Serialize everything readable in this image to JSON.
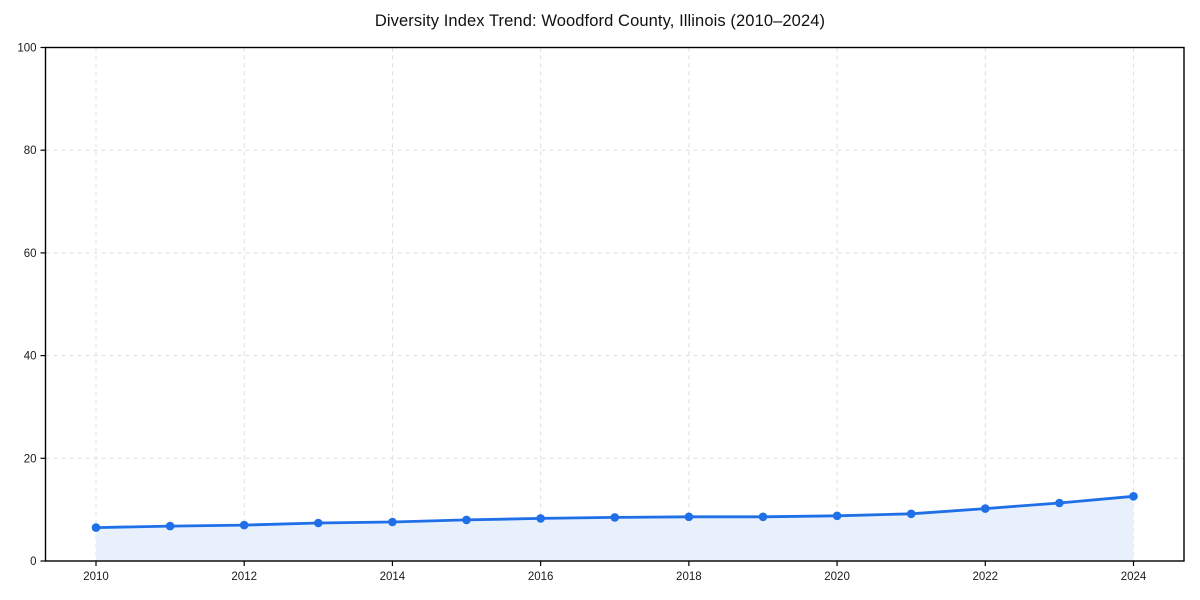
{
  "chart_data": {
    "type": "line",
    "title": "Diversity Index Trend: Woodford County, Illinois (2010–2024)",
    "xlabel": "",
    "ylabel": "",
    "x": [
      2010,
      2011,
      2012,
      2013,
      2014,
      2015,
      2016,
      2017,
      2018,
      2019,
      2020,
      2021,
      2022,
      2023,
      2024
    ],
    "series": [
      {
        "name": "Diversity Index",
        "values": [
          6.5,
          6.8,
          7.0,
          7.4,
          7.6,
          8.0,
          8.3,
          8.5,
          8.6,
          8.6,
          8.8,
          9.2,
          10.2,
          11.3,
          12.6
        ],
        "marker": "circle",
        "area_fill": true
      }
    ],
    "ylim": [
      0,
      100
    ],
    "yticks": [
      0,
      20,
      40,
      60,
      80,
      100
    ],
    "xticks": [
      2010,
      2012,
      2014,
      2016,
      2018,
      2020,
      2022,
      2024
    ],
    "grid": true,
    "grid_style": "dashed",
    "legend": "none",
    "colors": {
      "line": "#1f6fe8",
      "marker": "#1f6fe8",
      "area_fill": "#e8f0fc",
      "grid": "#dedede",
      "spine": "#000000",
      "tick_label": "#1a1a1a",
      "title": "#111111"
    }
  }
}
